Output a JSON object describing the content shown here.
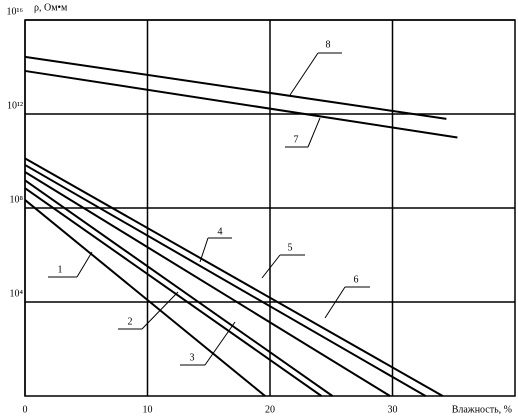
{
  "chart_data": {
    "type": "line",
    "y_label": "ρ, Ом•м",
    "x_label": "Влажность, %",
    "log_y": true,
    "grid": true,
    "xlim": [
      0,
      40
    ],
    "xticks": [
      0,
      10,
      20,
      30
    ],
    "ylim": [
      1,
      1e+16
    ],
    "yticks": [
      {
        "value": 10000,
        "label": "10⁴"
      },
      {
        "value": 100000000,
        "label": "10⁸"
      },
      {
        "value": 1000000000000,
        "label": "10¹²"
      },
      {
        "value": 1e+16,
        "label": "10¹⁶"
      }
    ],
    "series": [
      {
        "name": "1",
        "color": "#000000",
        "x": [
          0,
          19.6
        ],
        "values": [
          220000000,
          1
        ]
      },
      {
        "name": "2",
        "color": "#000000",
        "x": [
          0,
          24.2
        ],
        "values": [
          700000000,
          1
        ]
      },
      {
        "name": "3",
        "color": "#000000",
        "x": [
          0,
          25.1
        ],
        "values": [
          1500000000,
          1
        ]
      },
      {
        "name": "4",
        "color": "#000000",
        "x": [
          0,
          29.8
        ],
        "values": [
          3400000000,
          1
        ]
      },
      {
        "name": "5",
        "color": "#000000",
        "x": [
          0,
          32.7
        ],
        "values": [
          6800000000,
          1
        ]
      },
      {
        "name": "6",
        "color": "#000000",
        "x": [
          0,
          34.1
        ],
        "values": [
          13000000000,
          1
        ]
      },
      {
        "name": "7",
        "color": "#000000",
        "x": [
          0,
          35.3
        ],
        "values": [
          68000000000000,
          100000000000
        ]
      },
      {
        "name": "8",
        "color": "#000000",
        "x": [
          0,
          34.4
        ],
        "values": [
          270000000000000,
          620000000000
        ]
      }
    ]
  }
}
